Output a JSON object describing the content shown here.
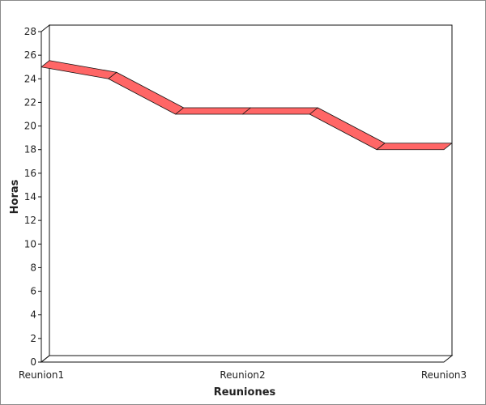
{
  "chart_data": {
    "type": "line",
    "style": "3d-ribbon",
    "x": [
      "Reunion1",
      "",
      "",
      "Reunion2",
      "",
      "",
      "Reunion3"
    ],
    "x_tick_labels": [
      "Reunion1",
      "Reunion2",
      "Reunion3"
    ],
    "series": [
      {
        "values": [
          25,
          24,
          21,
          21,
          21,
          18,
          18
        ],
        "color": "#ff6666"
      }
    ],
    "xlabel": "Reuniones",
    "ylabel": "Horas",
    "ylim": [
      0,
      28
    ],
    "y_ticks": [
      0,
      2,
      4,
      6,
      8,
      10,
      12,
      14,
      16,
      18,
      20,
      22,
      24,
      26,
      28
    ],
    "grid": false
  }
}
